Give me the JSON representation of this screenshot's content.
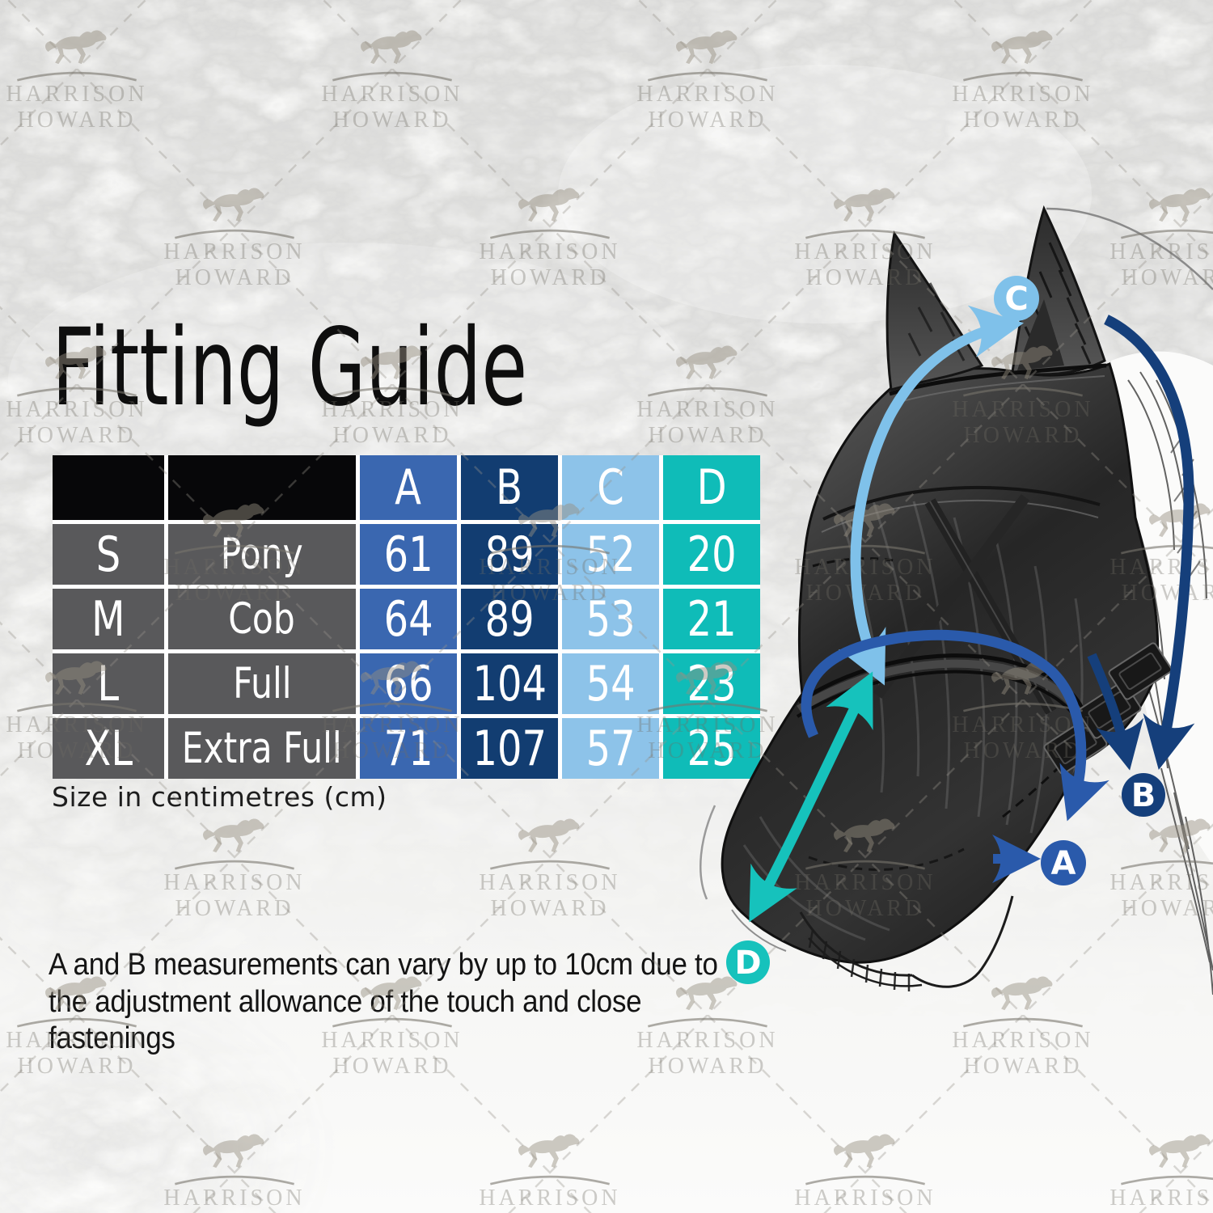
{
  "title": "Fitting Guide",
  "watermark": {
    "line1": "HARRISON",
    "line2": "HOWARD"
  },
  "size_table": {
    "measure_columns": [
      {
        "label": "A",
        "color": "#3a67b0"
      },
      {
        "label": "B",
        "color": "#123d71"
      },
      {
        "label": "C",
        "color": "#8dc3e9"
      },
      {
        "label": "D",
        "color": "#0fbcb8"
      }
    ],
    "rows": [
      {
        "size": "S",
        "name": "Pony",
        "values": [
          61,
          89,
          52,
          20
        ]
      },
      {
        "size": "M",
        "name": "Cob",
        "values": [
          64,
          89,
          53,
          21
        ]
      },
      {
        "size": "L",
        "name": "Full",
        "values": [
          66,
          104,
          54,
          23
        ]
      },
      {
        "size": "XL",
        "name": "Extra Full",
        "values": [
          71,
          107,
          57,
          25
        ]
      }
    ],
    "row_label_color": "#59595b",
    "header_blank_color": "#070709",
    "caption": "Size in centimetres (cm)"
  },
  "note": "A and B measurements can vary by up to 10cm due to the adjustment allowance of the touch and close fastenings",
  "diagram": {
    "markers": [
      {
        "label": "A",
        "color": "#2a5aab"
      },
      {
        "label": "B",
        "color": "#153f7b"
      },
      {
        "label": "C",
        "color": "#7fc1ea"
      },
      {
        "label": "D",
        "color": "#16c2bc"
      }
    ]
  }
}
